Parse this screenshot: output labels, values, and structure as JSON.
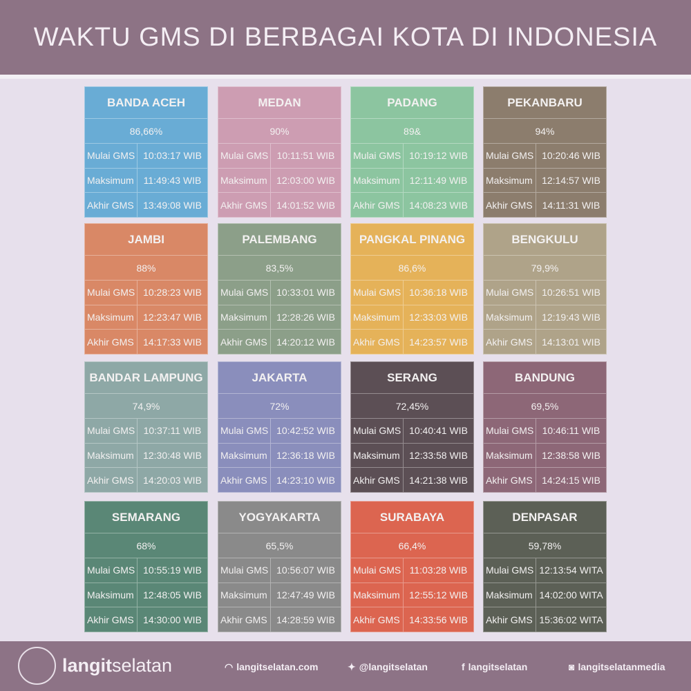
{
  "title": "WAKTU GMS DI BERBAGAI KOTA DI INDONESIA",
  "labels": {
    "start": "Mulai GMS",
    "max": "Maksimum",
    "end": "Akhir GMS"
  },
  "cities": [
    {
      "name": "BANDA ACEH",
      "pct": "86,66%",
      "start": "10:03:17 WIB",
      "max": "11:49:43 WIB",
      "end": "13:49:08 WIB",
      "color": "#69acd5"
    },
    {
      "name": "MEDAN",
      "pct": "90%",
      "start": "10:11:51 WIB",
      "max": "12:03:00 WIB",
      "end": "14:01:52 WIB",
      "color": "#cd9db2"
    },
    {
      "name": "PADANG",
      "pct": "89&",
      "start": "10:19:12 WIB",
      "max": "12:11:49 WIB",
      "end": "14:08:23 WIB",
      "color": "#8cc5a0"
    },
    {
      "name": "PEKANBARU",
      "pct": "94%",
      "start": "10:20:46 WIB",
      "max": "12:14:57 WIB",
      "end": "14:11:31 WIB",
      "color": "#8c7d6d"
    },
    {
      "name": "JAMBI",
      "pct": "88%",
      "start": "10:28:23 WIB",
      "max": "12:23:47 WIB",
      "end": "14:17:33 WIB",
      "color": "#d98866"
    },
    {
      "name": "PALEMBANG",
      "pct": "83,5%",
      "start": "10:33:01 WIB",
      "max": "12:28:26 WIB",
      "end": "14:20:12 WIB",
      "color": "#8c9f89"
    },
    {
      "name": "PANGKAL PINANG",
      "pct": "86,6%",
      "start": "10:36:18 WIB",
      "max": "12:33:03 WIB",
      "end": "14:23:57 WIB",
      "color": "#e5b259"
    },
    {
      "name": "BENGKULU",
      "pct": "79,9%",
      "start": "10:26:51 WIB",
      "max": "12:19:43 WIB",
      "end": "14:13:01 WIB",
      "color": "#afa389"
    },
    {
      "name": "BANDAR LAMPUNG",
      "pct": "74,9%",
      "start": "10:37:11 WIB",
      "max": "12:30:48 WIB",
      "end": "14:20:03 WIB",
      "color": "#8ea8a6"
    },
    {
      "name": "JAKARTA",
      "pct": "72%",
      "start": "10:42:52 WIB",
      "max": "12:36:18 WIB",
      "end": "14:23:10 WIB",
      "color": "#8a8ebc"
    },
    {
      "name": "SERANG",
      "pct": "72,45%",
      "start": "10:40:41 WIB",
      "max": "12:33:58 WIB",
      "end": "14:21:38 WIB",
      "color": "#5c4f55"
    },
    {
      "name": "BANDUNG",
      "pct": "69,5%",
      "start": "10:46:11 WIB",
      "max": "12:38:58 WIB",
      "end": "14:24:15 WIB",
      "color": "#8d6777"
    },
    {
      "name": "SEMARANG",
      "pct": "68%",
      "start": "10:55:19 WIB",
      "max": "12:48:05 WIB",
      "end": "14:30:00 WIB",
      "color": "#5a8776"
    },
    {
      "name": "YOGYAKARTA",
      "pct": "65,5%",
      "start": "10:56:07 WIB",
      "max": "12:47:49 WIB",
      "end": "14:28:59 WIB",
      "color": "#8a8a8a"
    },
    {
      "name": "SURABAYA",
      "pct": "66,4%",
      "start": "11:03:28 WIB",
      "max": "12:55:12 WIB",
      "end": "14:33:56 WIB",
      "color": "#dc6550"
    },
    {
      "name": "DENPASAR",
      "pct": "59,78%",
      "start": "12:13:54 WITA",
      "max": "14:02:00 WITA",
      "end": "15:36:02 WITA",
      "color": "#5c6056"
    }
  ],
  "footer": {
    "logo_text": "LANGITSELATAN",
    "brand_bold": "langit",
    "brand_light": "selatan",
    "website": "langitselatan.com",
    "twitter": "@langitselatan",
    "facebook": "langitselatan",
    "instagram": "langitselatanmedia"
  },
  "colors": {
    "header": "#8d7385",
    "background": "#e7e0ec"
  }
}
